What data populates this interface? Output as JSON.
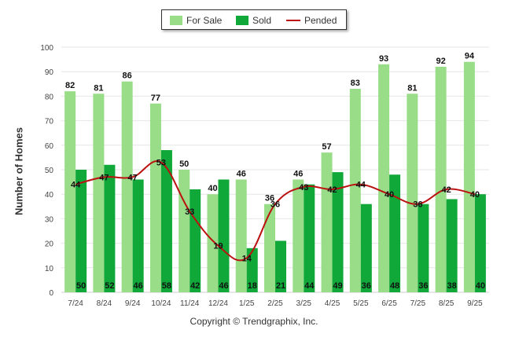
{
  "chart_data": {
    "type": "bar",
    "title": "",
    "xlabel": "",
    "ylabel": "Number of Homes",
    "ylim": [
      0,
      100
    ],
    "yticks": [
      0,
      10,
      20,
      30,
      40,
      50,
      60,
      70,
      80,
      90,
      100
    ],
    "categories": [
      "7/24",
      "8/24",
      "9/24",
      "10/24",
      "11/24",
      "12/24",
      "1/25",
      "2/25",
      "3/25",
      "4/25",
      "5/25",
      "6/25",
      "7/25",
      "8/25",
      "9/25"
    ],
    "series": [
      {
        "name": "For Sale",
        "type": "bar",
        "color": "#99dd88",
        "values": [
          82,
          81,
          86,
          77,
          50,
          40,
          46,
          36,
          46,
          57,
          83,
          93,
          81,
          92,
          94
        ]
      },
      {
        "name": "Sold",
        "type": "bar",
        "color": "#11a83a",
        "values": [
          50,
          52,
          46,
          58,
          42,
          46,
          18,
          21,
          44,
          49,
          36,
          48,
          36,
          38,
          40
        ]
      },
      {
        "name": "Pended",
        "type": "line",
        "color": "#bb1111",
        "values": [
          44,
          47,
          47,
          53,
          33,
          19,
          14,
          36,
          43,
          42,
          44,
          40,
          36,
          42,
          40
        ]
      }
    ],
    "legend": "top-center"
  },
  "copyright": "Copyright © Trendgraphix, Inc."
}
